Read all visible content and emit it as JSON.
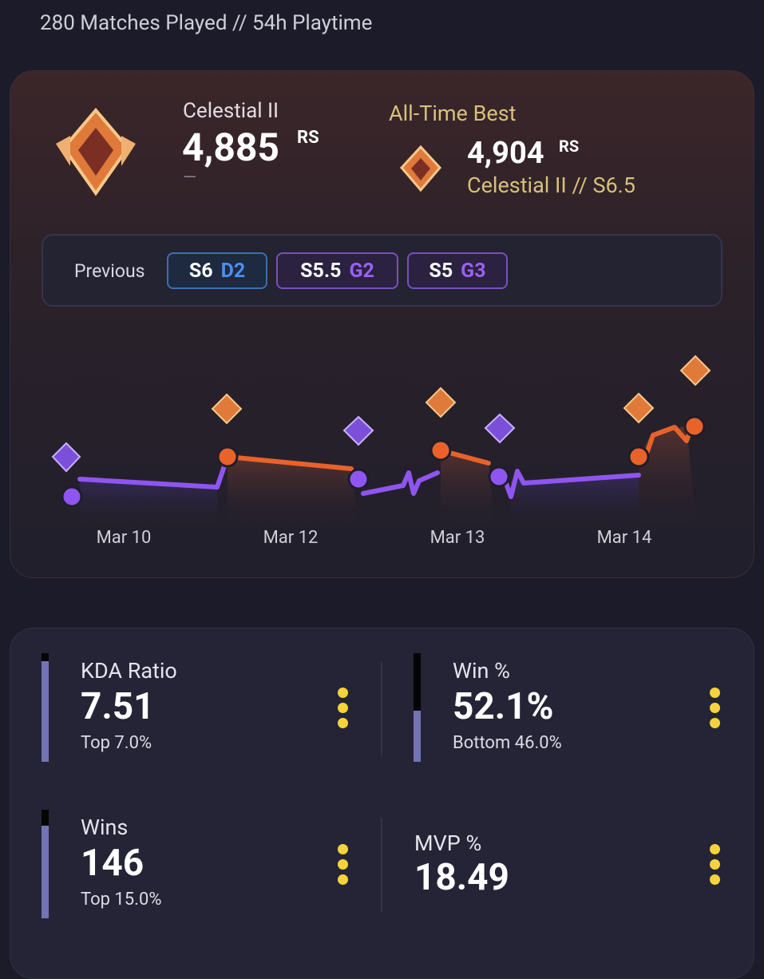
{
  "header": {
    "summary": "280 Matches Played // 54h Playtime"
  },
  "rank": {
    "current": {
      "tier": "Celestial II",
      "rs": "4,885",
      "unit": "RS",
      "change": "—"
    }
  },
  "best": {
    "title": "All-Time Best",
    "rs": "4,904",
    "unit": "RS",
    "detail": "Celestial II // S6.5"
  },
  "previous": {
    "label": "Previous",
    "seasons": [
      {
        "season": "S6",
        "rank": "D2"
      },
      {
        "season": "S5.5",
        "rank": "G2"
      },
      {
        "season": "S5",
        "rank": "G3"
      }
    ]
  },
  "chart": {
    "x_labels": [
      "Mar 10",
      "Mar 12",
      "Mar 13",
      "Mar 14"
    ]
  },
  "stats": [
    {
      "label": "KDA Ratio",
      "value": "7.51",
      "note": "Top 7.0%"
    },
    {
      "label": "Win %",
      "value": "52.1%",
      "note": "Bottom 46.0%"
    },
    {
      "label": "Wins",
      "value": "146",
      "note": "Top 15.0%"
    },
    {
      "label": "MVP %",
      "value": "18.49"
    }
  ]
}
